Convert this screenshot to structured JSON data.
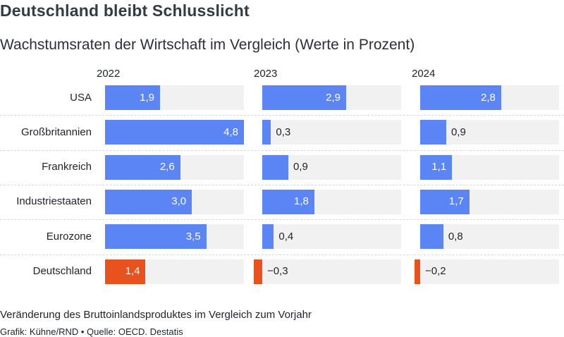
{
  "title": "Deutschland bleibt Schlusslicht",
  "subtitle": "Wachstumsraten der Wirtschaft im Vergleich (Werte in Prozent)",
  "footnote": "Veränderung des Bruttoinlandsproduktes im Vergleich zum Vorjahr",
  "source": "Grafik: Kühne/RND • Quelle: OECD. Destatis",
  "colors": {
    "bar": "#5b84f5",
    "highlight": "#e8521f",
    "track": "#f1f1f1"
  },
  "chart_data": {
    "type": "bar",
    "orientation": "horizontal",
    "layout": "small-multiples",
    "categories": [
      "USA",
      "Großbritannien",
      "Frankreich",
      "Industriestaaten",
      "Eurozone",
      "Deutschland"
    ],
    "series": [
      {
        "name": "2022",
        "values": [
          1.9,
          4.8,
          2.6,
          3.0,
          3.5,
          1.4
        ],
        "labels": [
          "1,9",
          "4,8",
          "2,6",
          "3,0",
          "3,5",
          "1,4"
        ]
      },
      {
        "name": "2023",
        "values": [
          2.9,
          0.3,
          0.9,
          1.8,
          0.4,
          -0.3
        ],
        "labels": [
          "2,9",
          "0,3",
          "0,9",
          "1,8",
          "0,4",
          "−0,3"
        ]
      },
      {
        "name": "2024",
        "values": [
          2.8,
          0.9,
          1.1,
          1.7,
          0.8,
          -0.2
        ],
        "labels": [
          "2,8",
          "0,9",
          "1,1",
          "1,7",
          "0,8",
          "−0,2"
        ]
      }
    ],
    "highlight_category": "Deutschland",
    "xlim": [
      -0.3,
      4.8
    ],
    "grid": false,
    "legend": "none"
  }
}
